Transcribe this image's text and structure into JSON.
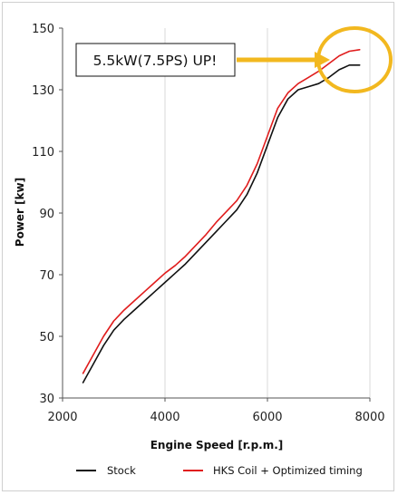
{
  "chart_data": {
    "type": "line",
    "title": "",
    "xlabel": "Engine Speed [r.p.m.]",
    "ylabel": "Power [kw]",
    "xlim": [
      2000,
      8000
    ],
    "ylim": [
      30,
      150
    ],
    "xticks": [
      2000,
      4000,
      6000,
      8000
    ],
    "yticks": [
      30,
      50,
      70,
      90,
      110,
      130,
      150
    ],
    "grid": "vertical",
    "legend_position": "bottom",
    "annotation": "5.5kW(7.5PS) UP!",
    "series": [
      {
        "name": "Stock",
        "color": "#111111",
        "x": [
          2400,
          2600,
          2800,
          3000,
          3200,
          3400,
          3600,
          3800,
          4000,
          4200,
          4400,
          4600,
          4800,
          5000,
          5200,
          5400,
          5600,
          5800,
          6000,
          6200,
          6400,
          6600,
          6800,
          7000,
          7200,
          7400,
          7600,
          7800
        ],
        "values": [
          35,
          41,
          47,
          52,
          55.5,
          58.5,
          61.5,
          64.5,
          67.5,
          70.5,
          73.5,
          77,
          80.5,
          84,
          87.5,
          91,
          96,
          103,
          112,
          121,
          127,
          130,
          131,
          132,
          134,
          136.5,
          138,
          138
        ]
      },
      {
        "name": "HKS Coil + Optimized timing",
        "color": "#e01d1d",
        "x": [
          2400,
          2600,
          2800,
          3000,
          3200,
          3400,
          3600,
          3800,
          4000,
          4200,
          4400,
          4600,
          4800,
          5000,
          5200,
          5400,
          5600,
          5800,
          6000,
          6200,
          6400,
          6600,
          6800,
          7000,
          7200,
          7400,
          7600,
          7800
        ],
        "values": [
          38,
          44,
          50,
          55,
          58.5,
          61.5,
          64.5,
          67.5,
          70.5,
          73,
          76,
          79.5,
          83,
          87,
          90.5,
          94,
          99,
          106,
          115,
          124,
          129,
          132,
          134,
          136,
          138.5,
          141,
          142.5,
          143
        ]
      }
    ]
  }
}
